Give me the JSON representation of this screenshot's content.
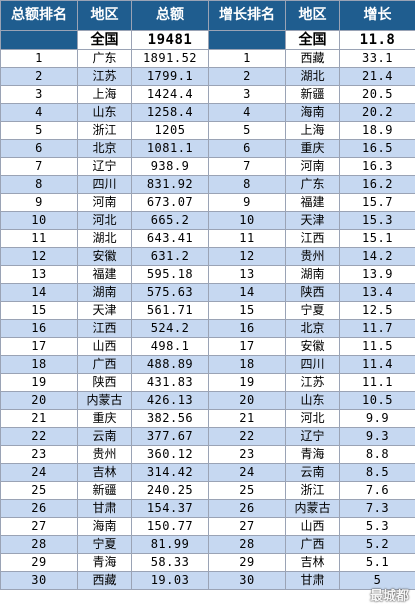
{
  "headers": [
    "总额排名",
    "地区",
    "总额",
    "增长排名",
    "地区",
    "增长"
  ],
  "total": {
    "region_left": "全国",
    "value_left": "19481",
    "region_right": "全国",
    "value_right": "11.8"
  },
  "rows": [
    [
      "1",
      "广东",
      "1891.52",
      "1",
      "西藏",
      "33.1"
    ],
    [
      "2",
      "江苏",
      "1799.1",
      "2",
      "湖北",
      "21.4"
    ],
    [
      "3",
      "上海",
      "1424.4",
      "3",
      "新疆",
      "20.5"
    ],
    [
      "4",
      "山东",
      "1258.4",
      "4",
      "海南",
      "20.2"
    ],
    [
      "5",
      "浙江",
      "1205",
      "5",
      "上海",
      "18.9"
    ],
    [
      "6",
      "北京",
      "1081.1",
      "6",
      "重庆",
      "16.5"
    ],
    [
      "7",
      "辽宁",
      "938.9",
      "7",
      "河南",
      "16.3"
    ],
    [
      "8",
      "四川",
      "831.92",
      "8",
      "广东",
      "16.2"
    ],
    [
      "9",
      "河南",
      "673.07",
      "9",
      "福建",
      "15.7"
    ],
    [
      "10",
      "河北",
      "665.2",
      "10",
      "天津",
      "15.3"
    ],
    [
      "11",
      "湖北",
      "643.41",
      "11",
      "江西",
      "15.1"
    ],
    [
      "12",
      "安徽",
      "631.2",
      "12",
      "贵州",
      "14.2"
    ],
    [
      "13",
      "福建",
      "595.18",
      "13",
      "湖南",
      "13.9"
    ],
    [
      "14",
      "湖南",
      "575.63",
      "14",
      "陕西",
      "13.4"
    ],
    [
      "15",
      "天津",
      "561.71",
      "15",
      "宁夏",
      "12.5"
    ],
    [
      "16",
      "江西",
      "524.2",
      "16",
      "北京",
      "11.7"
    ],
    [
      "17",
      "山西",
      "498.1",
      "17",
      "安徽",
      "11.5"
    ],
    [
      "18",
      "广西",
      "488.89",
      "18",
      "四川",
      "11.4"
    ],
    [
      "19",
      "陕西",
      "431.83",
      "19",
      "江苏",
      "11.1"
    ],
    [
      "20",
      "内蒙古",
      "426.13",
      "20",
      "山东",
      "10.5"
    ],
    [
      "21",
      "重庆",
      "382.56",
      "21",
      "河北",
      "9.9"
    ],
    [
      "22",
      "云南",
      "377.67",
      "22",
      "辽宁",
      "9.3"
    ],
    [
      "23",
      "贵州",
      "360.12",
      "23",
      "青海",
      "8.8"
    ],
    [
      "24",
      "吉林",
      "314.42",
      "24",
      "云南",
      "8.5"
    ],
    [
      "25",
      "新疆",
      "240.25",
      "25",
      "浙江",
      "7.6"
    ],
    [
      "26",
      "甘肃",
      "154.37",
      "26",
      "内蒙古",
      "7.3"
    ],
    [
      "27",
      "海南",
      "150.77",
      "27",
      "山西",
      "5.3"
    ],
    [
      "28",
      "宁夏",
      "81.99",
      "28",
      "广西",
      "5.2"
    ],
    [
      "29",
      "青海",
      "58.33",
      "29",
      "吉林",
      "5.1"
    ],
    [
      "30",
      "西藏",
      "19.03",
      "30",
      "甘肃",
      "5"
    ]
  ],
  "watermark": "最城都"
}
